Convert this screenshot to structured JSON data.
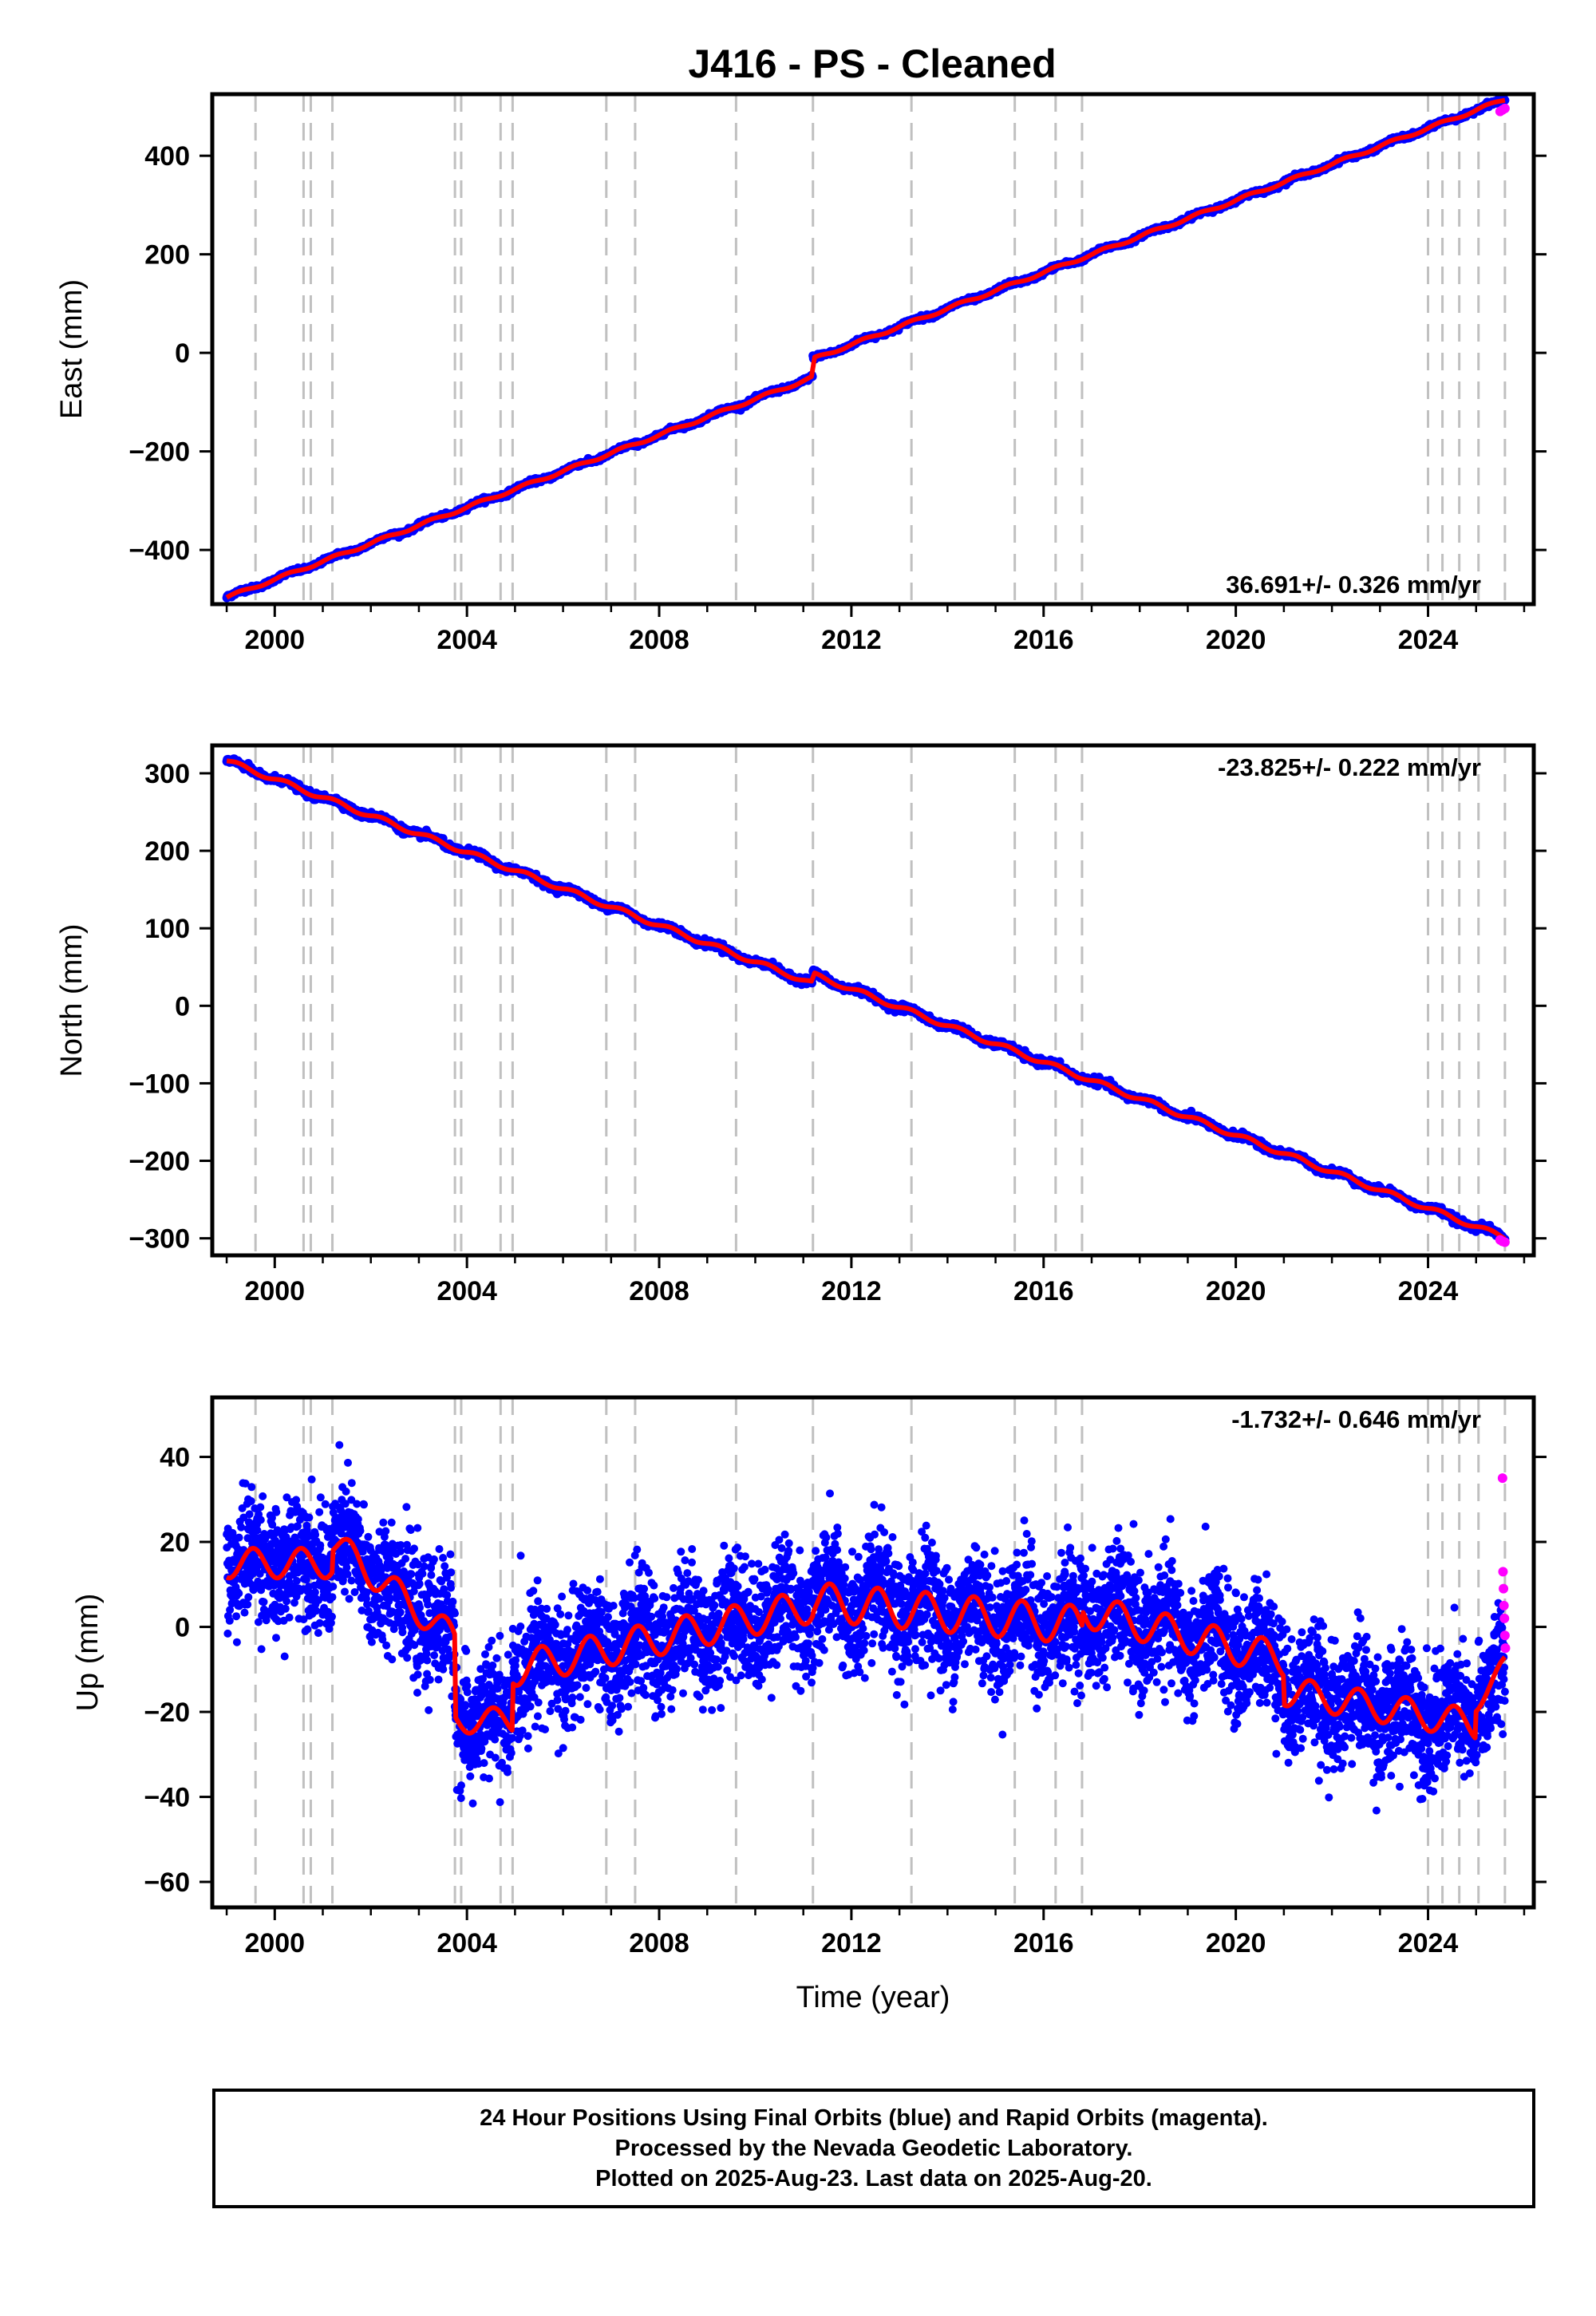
{
  "colors": {
    "final_orbits": "#0000ff",
    "rapid_orbits": "#ff00ff",
    "model": "#ff0000",
    "event_lines": "#c0c0c0"
  },
  "chart_data": [
    {
      "type": "scatter",
      "title": "J416  - PS - Cleaned",
      "ylabel": "East (mm)",
      "xlabel": "",
      "xlim": [
        1998.7,
        2026.2
      ],
      "ylim": [
        -510,
        525
      ],
      "x_ticks": [
        2000,
        2004,
        2008,
        2012,
        2016,
        2020,
        2024
      ],
      "y_ticks": [
        -400,
        -200,
        0,
        200,
        400
      ],
      "rate_text": "36.691+/- 0.326 mm/yr",
      "rate_position": "bottom-right",
      "grid": false,
      "event_lines": [
        1999.6,
        2000.6,
        2000.75,
        2001.2,
        2003.75,
        2003.88,
        2004.7,
        2004.95,
        2006.9,
        2007.5,
        2009.6,
        2011.2,
        2013.25,
        2015.4,
        2016.25,
        2016.8,
        2024.0,
        2024.3,
        2024.65,
        2025.05,
        2025.6
      ],
      "trend": {
        "start": 1999.0,
        "end": 2025.6,
        "y_start": -478,
        "y_end": 496
      },
      "offsets": [
        {
          "time": 2011.19,
          "size": 37
        }
      ],
      "rapid_points": [
        [
          2025.5,
          490
        ],
        [
          2025.55,
          493
        ],
        [
          2025.6,
          496
        ]
      ]
    },
    {
      "type": "scatter",
      "title": "",
      "ylabel": "North (mm)",
      "xlabel": "",
      "xlim": [
        1998.7,
        2026.2
      ],
      "ylim": [
        -322,
        336
      ],
      "x_ticks": [
        2000,
        2004,
        2008,
        2012,
        2016,
        2020,
        2024
      ],
      "y_ticks": [
        -300,
        -200,
        -100,
        0,
        100,
        200,
        300
      ],
      "rate_text": "-23.825+/- 0.222 mm/yr",
      "rate_position": "top-right",
      "grid": false,
      "event_lines": [
        1999.6,
        2000.6,
        2000.75,
        2001.2,
        2003.75,
        2003.88,
        2004.7,
        2004.95,
        2006.9,
        2007.5,
        2009.6,
        2011.2,
        2013.25,
        2015.4,
        2016.25,
        2016.8,
        2024.0,
        2024.3,
        2024.65,
        2025.05,
        2025.6
      ],
      "trend": {
        "start": 1999.0,
        "end": 2025.6,
        "y_start": 322,
        "y_end": -305
      },
      "offsets": [
        {
          "time": 2011.19,
          "size": 12
        }
      ],
      "rapid_points": [
        [
          2025.5,
          -302
        ],
        [
          2025.55,
          -304
        ],
        [
          2025.6,
          -305
        ]
      ]
    },
    {
      "type": "scatter",
      "title": "",
      "ylabel": "Up (mm)",
      "xlabel": "Time (year)",
      "xlim": [
        1998.7,
        2026.2
      ],
      "ylim": [
        -66,
        54
      ],
      "x_ticks": [
        2000,
        2004,
        2008,
        2012,
        2016,
        2020,
        2024
      ],
      "y_ticks": [
        -60,
        -40,
        -20,
        0,
        20,
        40
      ],
      "rate_text": "-1.732+/- 0.646 mm/yr",
      "rate_position": "top-right",
      "grid": false,
      "event_lines": [
        1999.6,
        2000.6,
        2000.75,
        2001.2,
        2003.75,
        2003.88,
        2004.7,
        2004.95,
        2006.9,
        2007.5,
        2009.6,
        2011.2,
        2013.25,
        2015.4,
        2016.25,
        2016.8,
        2024.0,
        2024.3,
        2024.65,
        2025.05,
        2025.6
      ],
      "model_segments": [
        {
          "start": 1999.0,
          "end": 2001.2,
          "level": 15,
          "trend": 0,
          "amp": 3.5
        },
        {
          "start": 2001.2,
          "end": 2003.75,
          "level": 20,
          "trend": -9,
          "amp": 3.5
        },
        {
          "start": 2003.75,
          "end": 2004.95,
          "level": -22,
          "trend": 0,
          "amp": 3
        },
        {
          "start": 2004.95,
          "end": 2011.2,
          "level": -10,
          "trend": 2.4,
          "amp": 4
        },
        {
          "start": 2011.2,
          "end": 2016.8,
          "level": 6,
          "trend": -1.0,
          "amp": 4.5
        },
        {
          "start": 2016.8,
          "end": 2021.0,
          "level": 4,
          "trend": -2.8,
          "amp": 4
        },
        {
          "start": 2021.0,
          "end": 2025.0,
          "level": -15,
          "trend": -2.0,
          "amp": 3.5
        },
        {
          "start": 2025.0,
          "end": 2025.6,
          "level": -18,
          "trend": 15,
          "amp": 2
        }
      ],
      "scatter_sigma": 7,
      "rapid_points": [
        [
          2025.55,
          35
        ],
        [
          2025.56,
          13
        ],
        [
          2025.57,
          9
        ],
        [
          2025.58,
          5
        ],
        [
          2025.59,
          2
        ],
        [
          2025.6,
          -2
        ],
        [
          2025.61,
          -5
        ]
      ]
    }
  ],
  "footer": {
    "line1": "24 Hour Positions Using Final Orbits (blue) and Rapid Orbits (magenta).",
    "line2": "Processed by the Nevada Geodetic Laboratory.",
    "line3": "Plotted on 2025-Aug-23. Last data on 2025-Aug-20."
  }
}
